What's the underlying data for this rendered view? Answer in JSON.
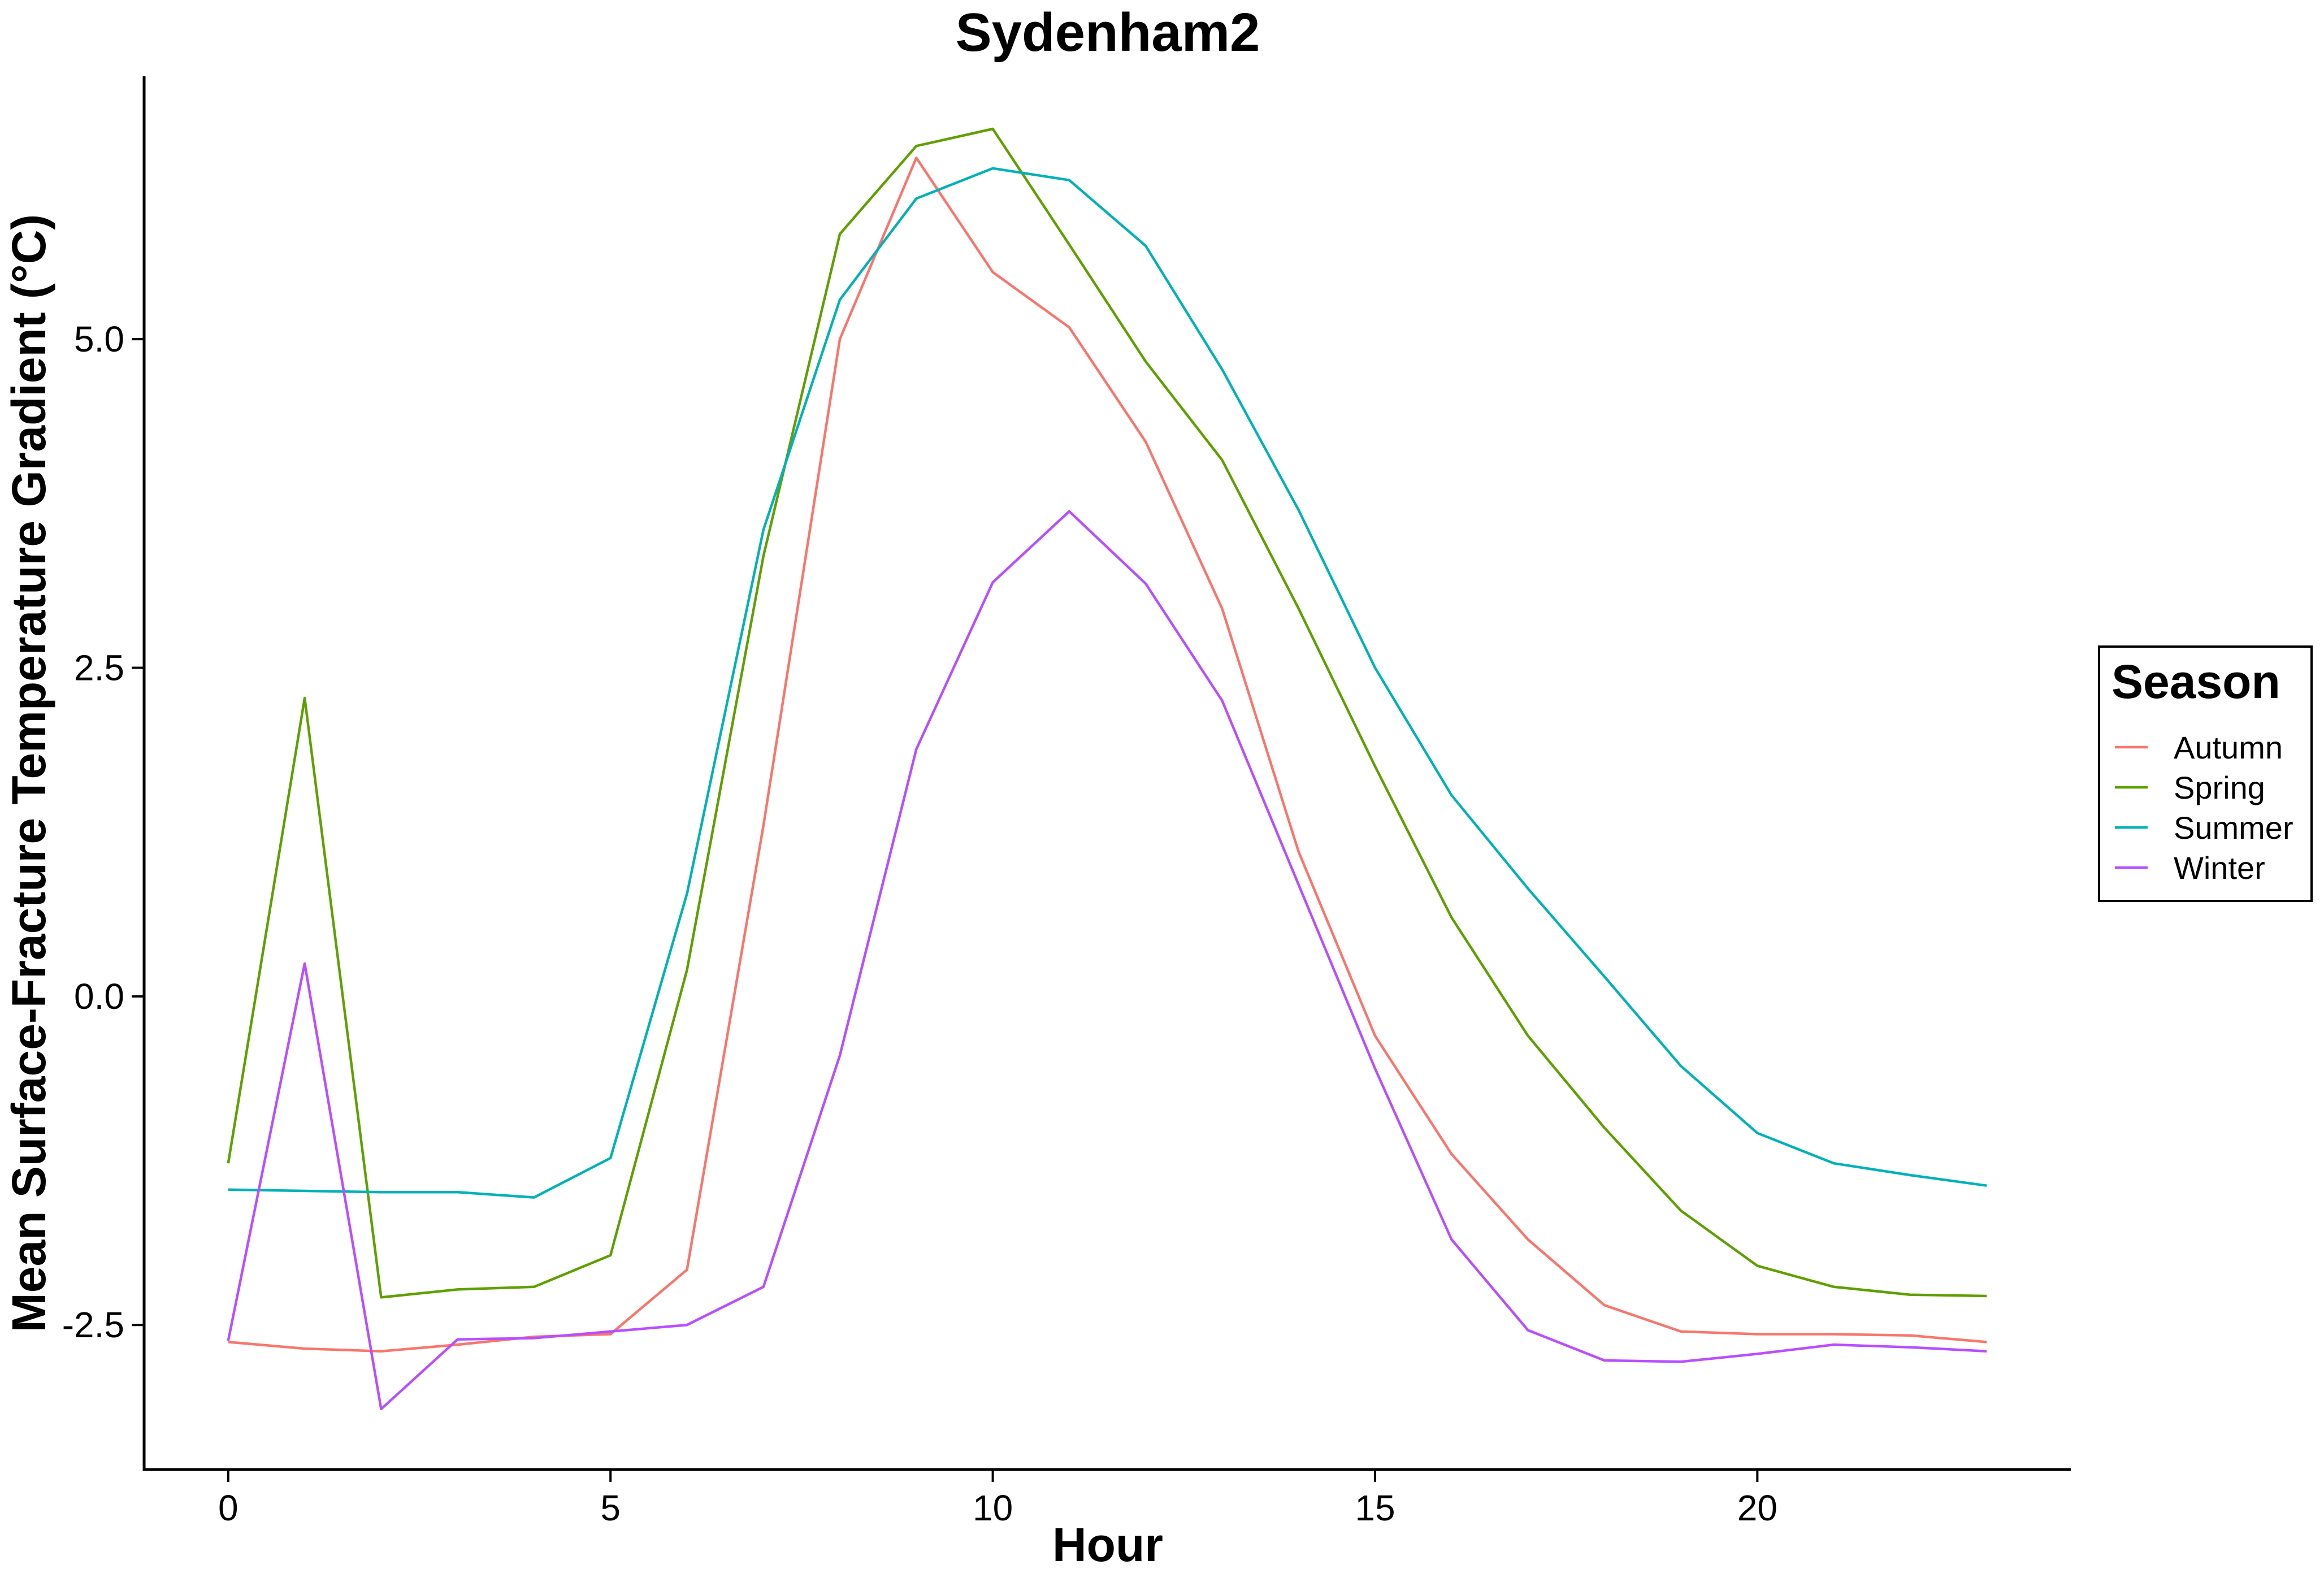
{
  "chart_data": {
    "type": "line",
    "title": "Sydenham2",
    "xlabel": "Hour",
    "ylabel": "Mean Surface-Fracture Temperature Gradient (°C)",
    "xlim": [
      -1.1,
      24.1
    ],
    "ylim": [
      -3.6,
      7.0
    ],
    "xticks": [
      0,
      5,
      10,
      15,
      20
    ],
    "xtick_labels": [
      "0",
      "5",
      "10",
      "15",
      "20"
    ],
    "yticks": [
      -2.5,
      0.0,
      2.5,
      5.0
    ],
    "ytick_labels": [
      "-2.5",
      "0.0",
      "2.5",
      "5.0"
    ],
    "grid": false,
    "legend": {
      "title": "Season",
      "position": "right"
    },
    "x": [
      0,
      1,
      2,
      3,
      4,
      5,
      6,
      7,
      8,
      9,
      10,
      11,
      12,
      13,
      14,
      15,
      16,
      17,
      18,
      19,
      20,
      21,
      22,
      23
    ],
    "series": [
      {
        "name": "Autumn",
        "color": "#F8766D",
        "values": [
          -2.63,
          -2.68,
          -2.7,
          -2.65,
          -2.59,
          -2.57,
          -2.08,
          1.3,
          5.0,
          6.38,
          5.51,
          5.09,
          4.22,
          2.95,
          1.1,
          -0.3,
          -1.2,
          -1.85,
          -2.35,
          -2.55,
          -2.57,
          -2.57,
          -2.58,
          -2.63
        ]
      },
      {
        "name": "Spring",
        "color": "#619CFF",
        "values": [
          -1.27,
          2.27,
          -2.29,
          -2.23,
          -2.21,
          -1.97,
          0.2,
          3.35,
          5.8,
          6.47,
          6.6,
          5.72,
          4.83,
          4.08,
          2.95,
          1.75,
          0.6,
          -0.3,
          -1.0,
          -1.63,
          -2.05,
          -2.21,
          -2.27,
          -2.28
        ]
      },
      {
        "name": "Summer",
        "color": "#00BFC4",
        "values": [
          -1.47,
          -1.48,
          -1.49,
          -1.49,
          -1.53,
          -1.23,
          0.78,
          3.55,
          5.3,
          6.07,
          6.3,
          6.21,
          5.71,
          4.77,
          3.7,
          2.5,
          1.53,
          0.82,
          0.15,
          -0.53,
          -1.04,
          -1.27,
          -1.36,
          -1.44
        ]
      },
      {
        "name": "Winter",
        "color": "#C77CFF",
        "values": [
          -2.62,
          0.25,
          -3.14,
          -2.61,
          -2.6,
          -2.55,
          -2.5,
          -2.21,
          -0.45,
          1.88,
          3.15,
          3.69,
          3.14,
          2.25,
          0.85,
          -0.55,
          -1.85,
          -2.54,
          -2.77,
          -2.78,
          -2.72,
          -2.65,
          -2.67,
          -2.7
        ]
      }
    ]
  }
}
